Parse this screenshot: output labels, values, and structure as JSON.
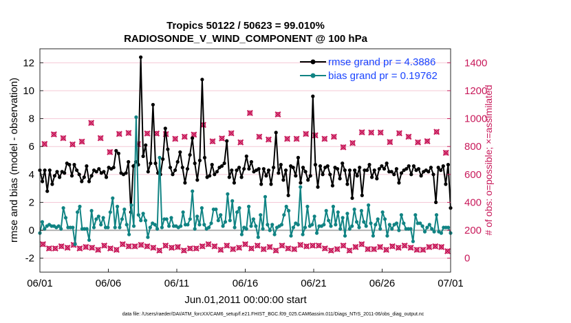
{
  "chart_data": {
    "type": "line",
    "title_line1": "Tropics 50122 / 50623 = 99.010%",
    "title_line2": "RADIOSONDE_V_WIND_COMPONENT @ 100 hPa",
    "xlabel": "Jun.01,2011 00:00:00 start",
    "ylabel_left": "rmse and bias (model - observation)",
    "ylabel_right": "# of obs: o=possible; ×=assimilated",
    "x_ticks": [
      {
        "value": 1,
        "label": "06/01"
      },
      {
        "value": 6,
        "label": "06/06"
      },
      {
        "value": 11,
        "label": "06/11"
      },
      {
        "value": 16,
        "label": "06/16"
      },
      {
        "value": 21,
        "label": "06/21"
      },
      {
        "value": 26,
        "label": "06/26"
      },
      {
        "value": 31,
        "label": "07/01"
      }
    ],
    "xlim": [
      1,
      31
    ],
    "ylim_left": [
      -3,
      13
    ],
    "ylim_right": [
      -100,
      1500
    ],
    "y_ticks_left": [
      -2,
      0,
      2,
      4,
      6,
      8,
      10,
      12
    ],
    "y_ticks_right": [
      0,
      200,
      400,
      600,
      800,
      1000,
      1200,
      1400
    ],
    "zero_line": 0,
    "legend": [
      {
        "name": "rmse grand pr = 4.3886"
      },
      {
        "name": "bias grand pr = 0.19762"
      }
    ],
    "series": [
      {
        "name": "rmse",
        "color": "#000000",
        "values": [
          4.3,
          3.5,
          4.3,
          2.8,
          4.3,
          3.3,
          3.9,
          4.2,
          3.8,
          4.2,
          4.1,
          4.8,
          4.7,
          3.9,
          4.7,
          4.3,
          4.0,
          3.5,
          3.8,
          4.6,
          3.5,
          3.9,
          4.3,
          4.2,
          4.4,
          4.1,
          4.2,
          3.8,
          4.5,
          4.4,
          4.5,
          5.7,
          5.5,
          4.1,
          4.0,
          4.1,
          4.9,
          1.3,
          4.6,
          4.9,
          4.7,
          12.4,
          5.3,
          6.1,
          4.2,
          4.8,
          9.0,
          4.8,
          4.1,
          4.0,
          5.1,
          7.3,
          5.8,
          4.5,
          4.0,
          4.3,
          4.9,
          5.6,
          4.5,
          3.4,
          4.4,
          5.4,
          6.6,
          4.8,
          3.6,
          5.0,
          10.8,
          5.2,
          3.8,
          3.9,
          4.7,
          4.0,
          4.2,
          4.5,
          4.6,
          4.8,
          6.4,
          3.8,
          4.3,
          3.4,
          4.3,
          4.5,
          3.8,
          4.4,
          5.3,
          4.4,
          4.9,
          4.2,
          4.3,
          4.4,
          3.3,
          4.4,
          3.9,
          4.3,
          3.3,
          4.5,
          7.0,
          4.1,
          4.7,
          3.6,
          4.3,
          2.5,
          4.6,
          4.5,
          3.9,
          5.2,
          3.4,
          4.5,
          4.2,
          3.6,
          3.9,
          9.6,
          4.7,
          3.1,
          4.6,
          4.0,
          4.5,
          4.6,
          4.0,
          3.2,
          4.5,
          4.4,
          3.7,
          4.8,
          4.3,
          3.3,
          4.3,
          2.3,
          4.3,
          3.9,
          4.5,
          2.5,
          4.3,
          4.3,
          4.7,
          3.8,
          4.3,
          3.7,
          4.4,
          4.6,
          4.4,
          4.8,
          4.2,
          4.2,
          4.0,
          4.4,
          3.4,
          4.1,
          4.3,
          4.4,
          4.6,
          4.0,
          4.6,
          4.3,
          4.4,
          3.9,
          4.2,
          4.3,
          4.2,
          4.5,
          4.0,
          2.0,
          4.5,
          4.3,
          4.6,
          3.3,
          4.7,
          1.6
        ],
        "label": "rmse grand pr = 4.3886"
      },
      {
        "name": "bias",
        "color": "#108383",
        "values": [
          -0.2,
          0.6,
          0.1,
          0.3,
          0.4,
          0.3,
          0.3,
          0.2,
          0.3,
          0.1,
          1.6,
          0.9,
          0.2,
          0.2,
          0.2,
          -1.0,
          1.3,
          1.7,
          0.1,
          0.1,
          0.1,
          -0.7,
          1.4,
          0.2,
          0.8,
          1.0,
          0.4,
          0.9,
          0.2,
          0.2,
          1.3,
          2.3,
          0.2,
          1.7,
          0.2,
          0.8,
          1.5,
          0.4,
          -0.3,
          1.8,
          0.3,
          8.1,
          1.1,
          0.7,
          1.2,
          0.7,
          -0.5,
          0.2,
          0.5,
          0.4,
          0.1,
          5.2,
          0.2,
          0.8,
          0.8,
          0.3,
          0.9,
          0.3,
          0.3,
          0.2,
          0.3,
          1.3,
          0.4,
          0.4,
          0.8,
          2.8,
          0.1,
          1.0,
          0.4,
          1.6,
          0.4,
          0.1,
          0.2,
          0.5,
          1.5,
          1.5,
          0.7,
          1.1,
          0.3,
          0.6,
          2.6,
          0.7,
          2.1,
          0.2,
          1.3,
          1.6,
          -0.3,
          0.2,
          0.1,
          1.7,
          0.3,
          0.8,
          0.3,
          -0.5,
          1.1,
          0.1,
          2.4,
          0.4,
          0.0,
          0.4,
          -0.3,
          0.2,
          0.3,
          0.4,
          1.1,
          1.7,
          1.4,
          -0.4,
          0.2,
          0.5,
          0.4,
          3.1,
          -0.3,
          0.2,
          1.7,
          0.3,
          0.4,
          1.0,
          -0.2,
          0.3,
          0.3,
          0.4,
          1.4,
          0.7,
          0.3,
          1.7,
          0.4,
          1.3,
          0.1,
          0.9,
          -0.4,
          1.2,
          0.1,
          0.3,
          1.5,
          0.6,
          0.2,
          1.4,
          0.6,
          0.3,
          1.8,
          0.5,
          -0.4,
          0.4,
          0.8,
          0.1,
          1.3,
          0.8,
          -0.4,
          0.4,
          0.1,
          0.4,
          0.5,
          0.0,
          1.1,
          0.5,
          0.1,
          0.1,
          0.1,
          -0.8,
          1.1,
          0.5,
          0.5,
          0.3,
          -0.1,
          0.2,
          0.4,
          0.1,
          -0.1,
          1.1,
          -0.1,
          -0.2,
          0.2,
          0.2,
          0.2,
          -0.2
        ],
        "label": "bias grand pr = 0.19762"
      }
    ],
    "obs_possible_color": "#c8195a",
    "obs_possible_values": [
      818,
      887,
      860,
      815,
      835,
      969,
      860,
      760,
      890,
      897,
      817,
      893,
      893,
      889,
      855,
      870,
      885,
      955,
      837,
      858,
      895,
      830,
      1040,
      870,
      850,
      1030,
      855,
      855,
      890,
      880,
      855,
      870,
      795,
      825,
      902,
      900,
      900,
      832,
      895,
      870,
      830,
      838,
      905,
      755
    ],
    "obs_assimilated_values": [
      100,
      70,
      70,
      85,
      75,
      95,
      70,
      80,
      75,
      60,
      90,
      70,
      60,
      100,
      85,
      85,
      95,
      85,
      75,
      55,
      90,
      75,
      80,
      55,
      70,
      70,
      85,
      100,
      85,
      60,
      90,
      65,
      75,
      100,
      70,
      90,
      65,
      80,
      55,
      90,
      70,
      65,
      95,
      85,
      90,
      90,
      70,
      55,
      65,
      90,
      55,
      80,
      100,
      65,
      65,
      80,
      60,
      85,
      75,
      90,
      75,
      60,
      60,
      80,
      85,
      80,
      50
    ]
  },
  "footer": "data file: /Users/raeder/DAI/ATM_forcXX/CAM6_setup/f.e21.FHIST_BGC.f09_025.CAM6assim.011/Diags_NTrS_2011-06/obs_diag_output.nc"
}
